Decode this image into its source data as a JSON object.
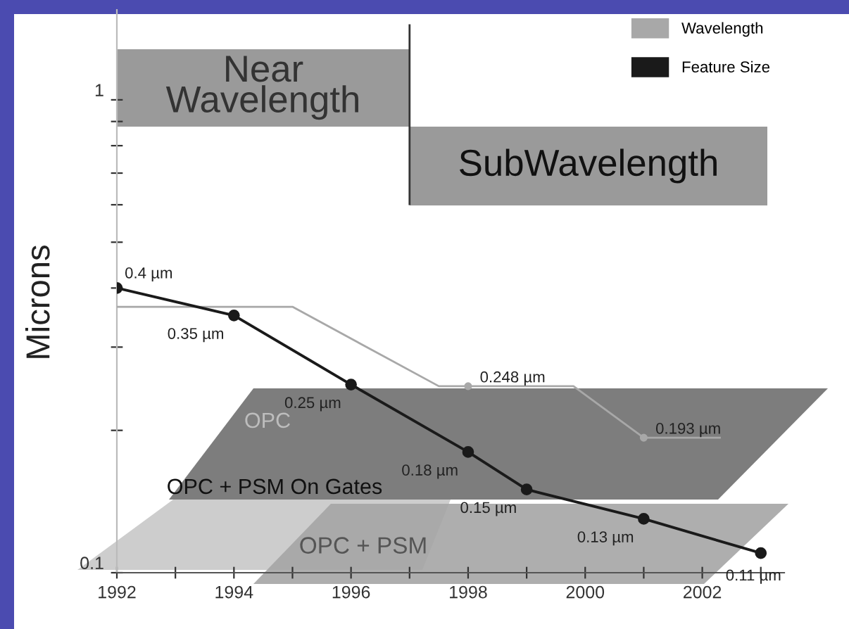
{
  "chart_data": {
    "type": "line",
    "ylabel": "Microns",
    "x": [
      1992,
      1994,
      1996,
      1998,
      1999,
      2001,
      2003
    ],
    "series": [
      {
        "name": "Wavelength",
        "color": "#a8a8a8",
        "x": [
          1992,
          1995,
          1997.5,
          1998,
          1999.8,
          2001,
          2002.3
        ],
        "values": [
          0.365,
          0.365,
          0.248,
          0.248,
          0.248,
          0.193,
          0.193
        ],
        "value_labels": [
          null,
          null,
          null,
          "0.248 µm",
          null,
          "0.193 µm",
          null
        ],
        "marker": "none"
      },
      {
        "name": "Feature Size",
        "color": "#1a1a1a",
        "values": [
          0.4,
          0.35,
          0.25,
          0.18,
          0.15,
          0.13,
          0.11
        ],
        "value_labels": [
          "0.4 µm",
          "0.35 µm",
          "0.25 µm",
          "0.18 µm",
          "0.15 µm",
          "0.13 µm",
          "0.11 µm"
        ],
        "marker": "circle"
      }
    ],
    "log": "y",
    "xlim": [
      1992,
      2003.4
    ],
    "xticks": [
      1992,
      {
        "value": 1993,
        "label": null
      },
      1994,
      {
        "value": 1995,
        "label": null
      },
      1996,
      {
        "value": 1997,
        "label": null
      },
      1998,
      {
        "value": 1999,
        "label": null
      },
      2000,
      {
        "value": 2001,
        "label": null
      },
      2002,
      {
        "value": 2003,
        "label": null
      }
    ],
    "ylim": [
      0.1,
      1.55
    ],
    "yticks": [
      0.1,
      {
        "value": 0.2,
        "label": null
      },
      {
        "value": 0.3,
        "label": null
      },
      {
        "value": 0.4,
        "label": null
      },
      {
        "value": 0.5,
        "label": null
      },
      {
        "value": 0.6,
        "label": null
      },
      {
        "value": 0.7,
        "label": null
      },
      {
        "value": 0.8,
        "label": null
      },
      {
        "value": 0.9,
        "label": null
      },
      1
    ],
    "ref_lines": [
      {
        "axis": "x",
        "value": 1997,
        "color": "#333333"
      }
    ],
    "annotations": [
      "Near\nWavelength",
      "SubWavelength",
      "OPC",
      "OPC + PSM On Gates",
      "OPC + PSM"
    ],
    "legend": "top right",
    "grid": false
  }
}
